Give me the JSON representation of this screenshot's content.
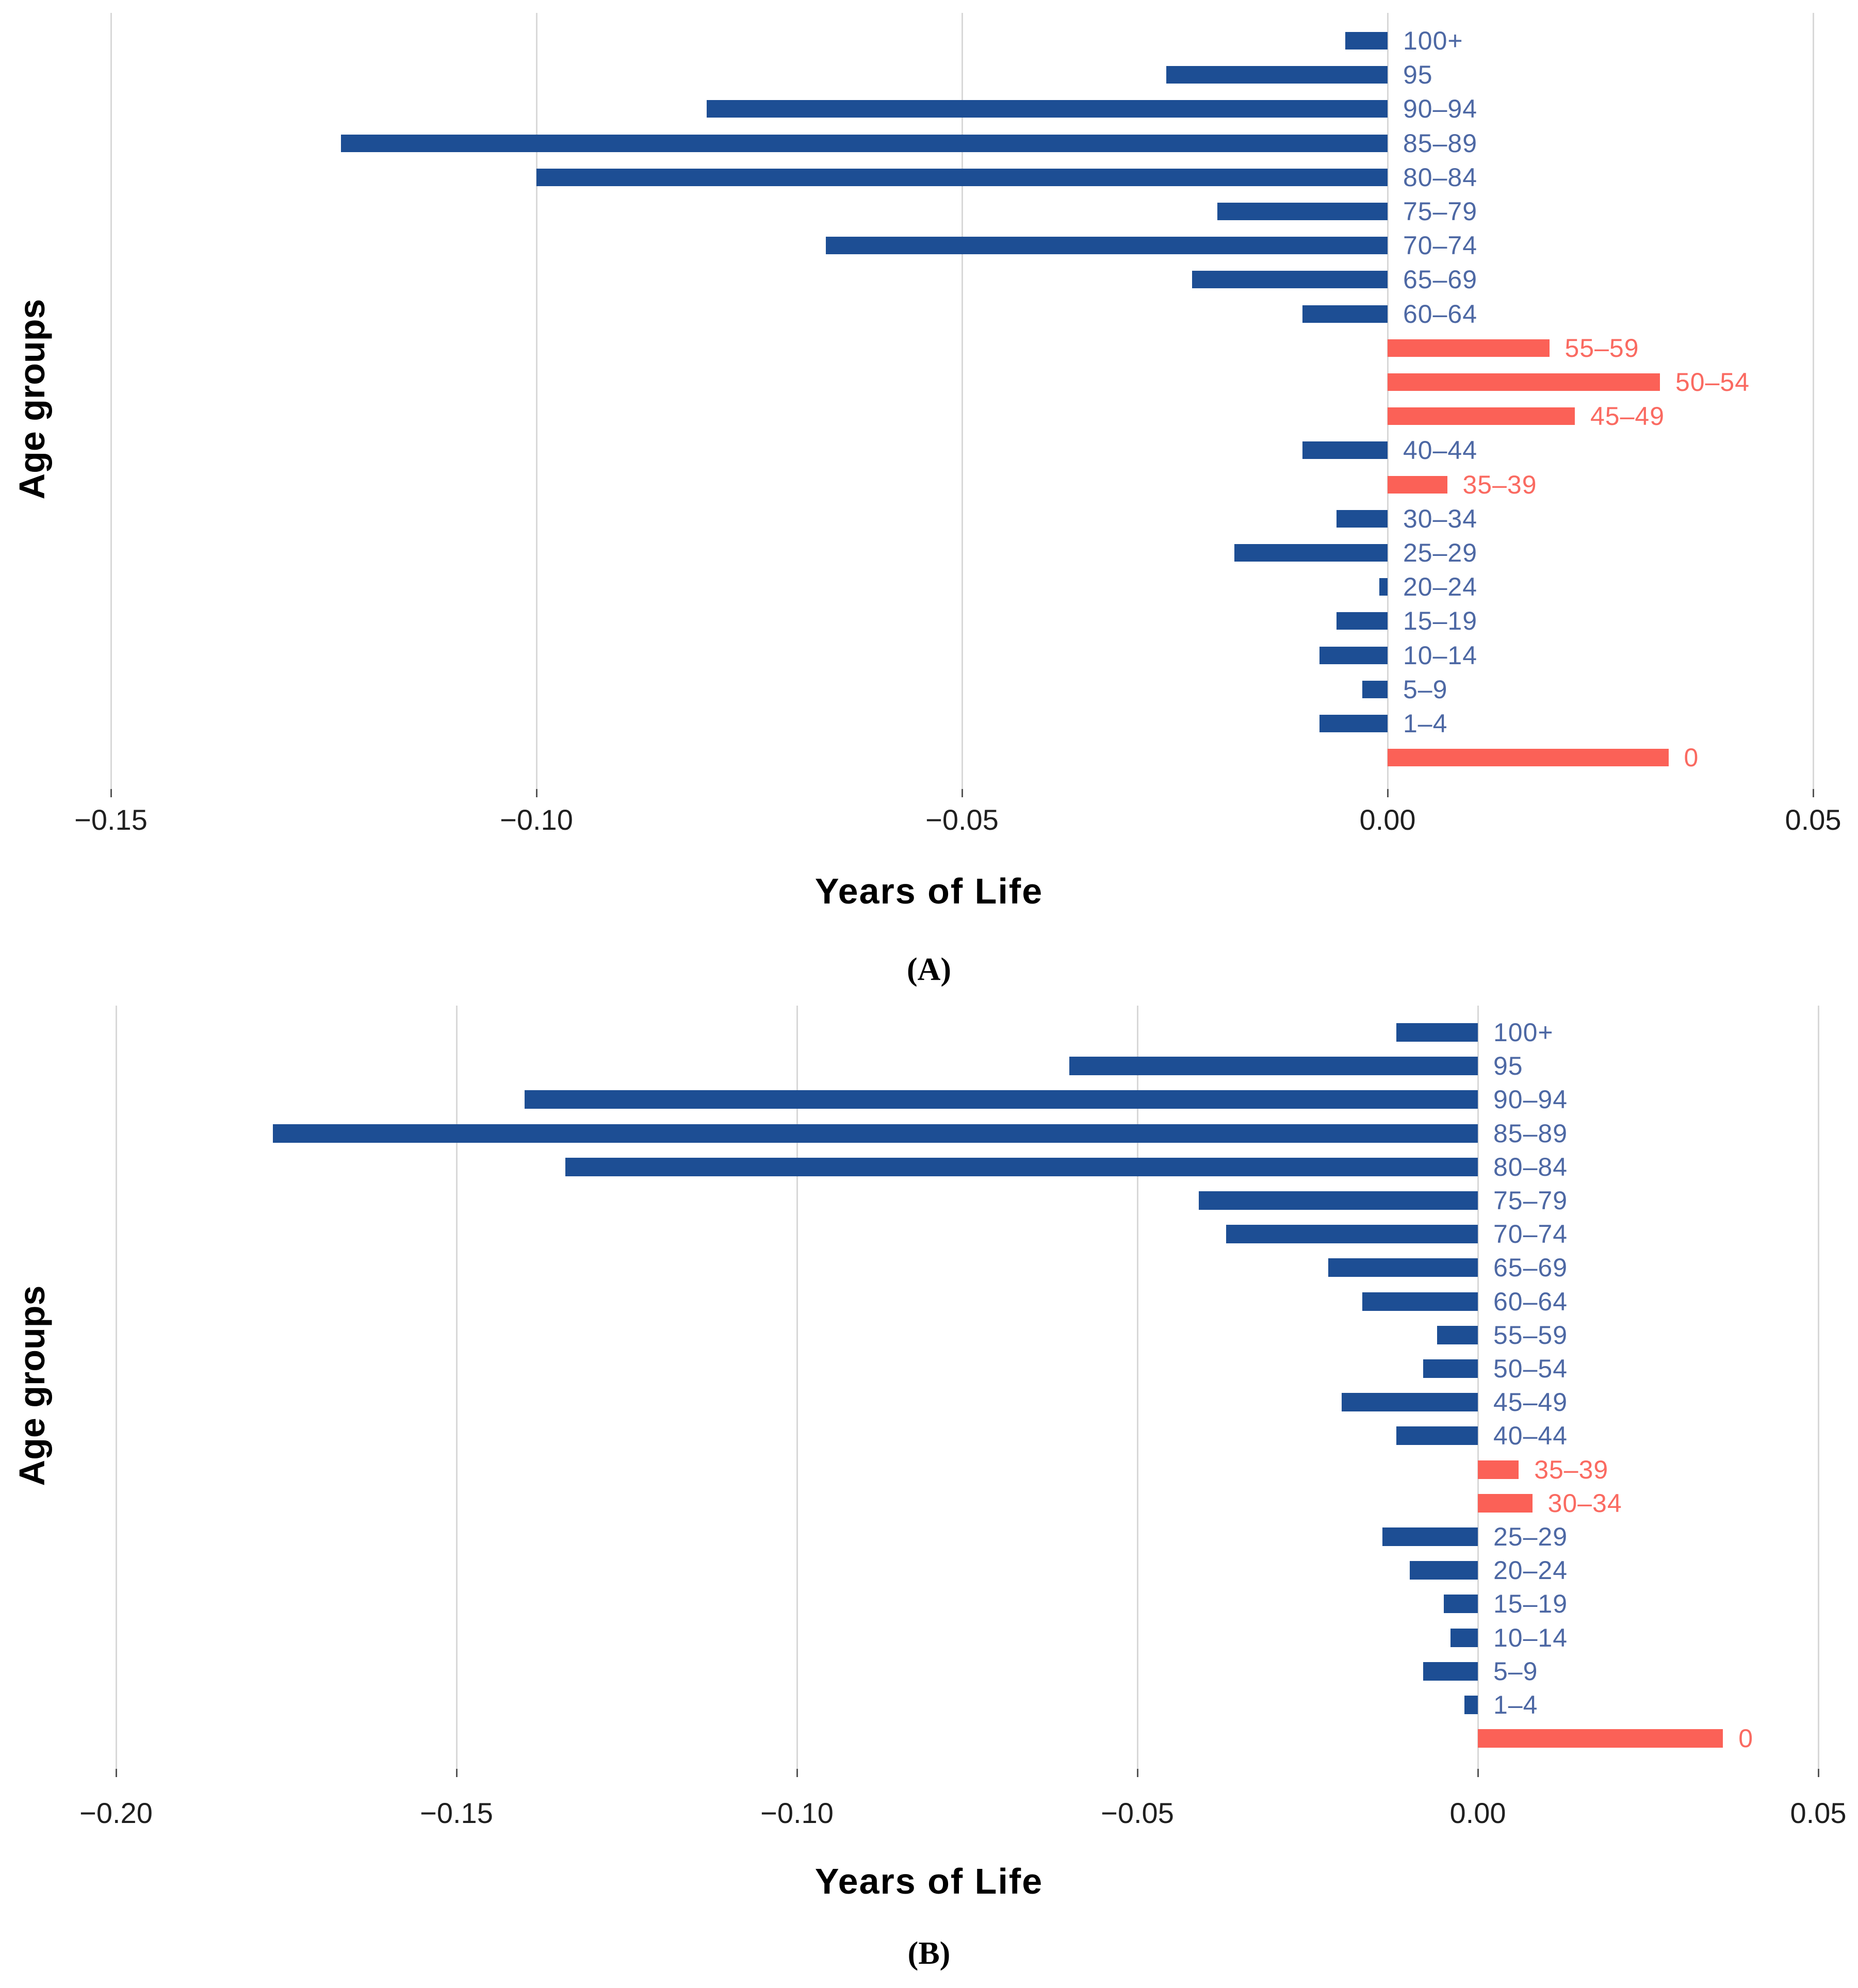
{
  "figure": {
    "background": "#ffffff",
    "colors": {
      "bar_negative": "#1d4e94",
      "bar_positive": "#fb6157",
      "label_negative": "#4d68a4",
      "label_positive": "#fa6a61",
      "tick_text": "#1f1f1f",
      "gridline": "#d8d8d8",
      "tick_mark": "#555555",
      "axis_title": "#000000"
    }
  },
  "chart_data": [
    {
      "panel_label": "(A)",
      "type": "bar",
      "orientation": "horizontal",
      "title": "",
      "xlabel": "Years of Life",
      "ylabel": "Age groups",
      "legend": "none",
      "grid": "vertical",
      "xlim": [
        -0.165,
        0.057
      ],
      "x_ticks": [
        -0.15,
        -0.1,
        -0.05,
        0.0,
        0.05
      ],
      "x_tick_labels": [
        "−0.15",
        "−0.10",
        "−0.05",
        "0.00",
        "0.05"
      ],
      "categories": [
        "100+",
        "95",
        "90–94",
        "85–89",
        "80–84",
        "75–79",
        "70–74",
        "65–69",
        "60–64",
        "55–59",
        "50–54",
        "45–49",
        "40–44",
        "35–39",
        "30–34",
        "25–29",
        "20–24",
        "15–19",
        "10–14",
        "5–9",
        "1–4",
        "0"
      ],
      "values": [
        -0.005,
        -0.026,
        -0.08,
        -0.123,
        -0.1,
        -0.02,
        -0.066,
        -0.023,
        -0.01,
        0.019,
        0.032,
        0.022,
        -0.01,
        0.007,
        -0.006,
        -0.018,
        -0.001,
        -0.006,
        -0.008,
        -0.003,
        -0.008,
        0.033
      ]
    },
    {
      "panel_label": "(B)",
      "type": "bar",
      "orientation": "horizontal",
      "title": "",
      "xlabel": "Years of Life",
      "ylabel": "Age groups",
      "legend": "none",
      "grid": "vertical",
      "xlim": [
        -0.215,
        0.057
      ],
      "x_ticks": [
        -0.2,
        -0.15,
        -0.1,
        -0.05,
        0.0,
        0.05
      ],
      "x_tick_labels": [
        "−0.20",
        "−0.15",
        "−0.10",
        "−0.05",
        "0.00",
        "0.05"
      ],
      "categories": [
        "100+",
        "95",
        "90–94",
        "85–89",
        "80–84",
        "75–79",
        "70–74",
        "65–69",
        "60–64",
        "55–59",
        "50–54",
        "45–49",
        "40–44",
        "35–39",
        "30–34",
        "25–29",
        "20–24",
        "15–19",
        "10–14",
        "5–9",
        "1–4",
        "0"
      ],
      "values": [
        -0.012,
        -0.06,
        -0.14,
        -0.177,
        -0.134,
        -0.041,
        -0.037,
        -0.022,
        -0.017,
        -0.006,
        -0.008,
        -0.02,
        -0.012,
        0.006,
        0.008,
        -0.014,
        -0.01,
        -0.005,
        -0.004,
        -0.008,
        -0.002,
        0.036
      ]
    }
  ]
}
